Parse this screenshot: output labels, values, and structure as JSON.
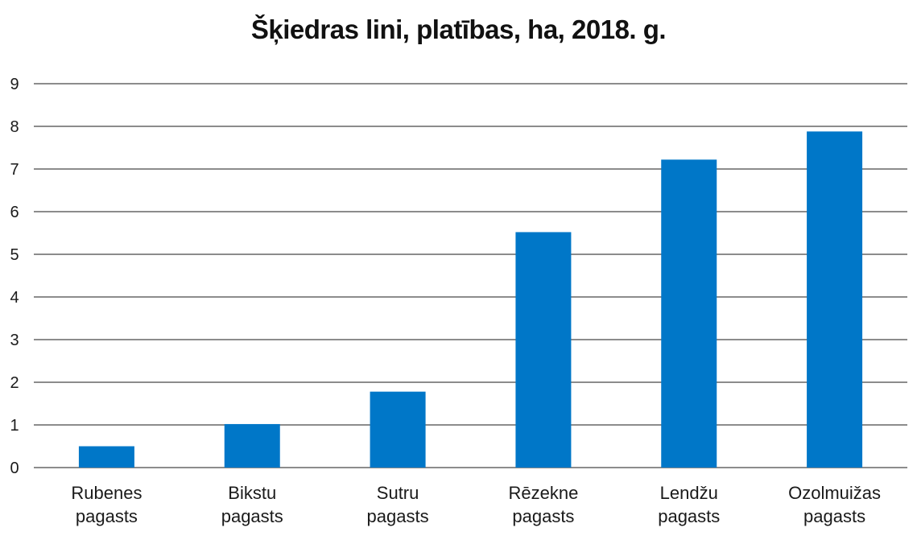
{
  "chart_data": {
    "type": "bar",
    "title": "Šķiedras lini, platības, ha, 2018. g.",
    "categories": [
      [
        "Rubenes",
        "pagasts"
      ],
      [
        "Bikstu",
        "pagasts"
      ],
      [
        "Sutru",
        "pagasts"
      ],
      [
        "Rēzekne",
        "pagasts"
      ],
      [
        "Lendžu",
        "pagasts"
      ],
      [
        "Ozolmuižas",
        "pagasts"
      ]
    ],
    "values": [
      0.5,
      1.02,
      1.78,
      5.52,
      7.22,
      7.88
    ],
    "ylim": [
      0,
      9
    ],
    "yticks": [
      "0",
      "1",
      "2",
      "3",
      "4",
      "5",
      "6",
      "7",
      "8",
      "9"
    ],
    "grid": true,
    "legend": "none",
    "colors": {
      "bar": "#0077c8",
      "grid": "#1a1a1a"
    }
  }
}
